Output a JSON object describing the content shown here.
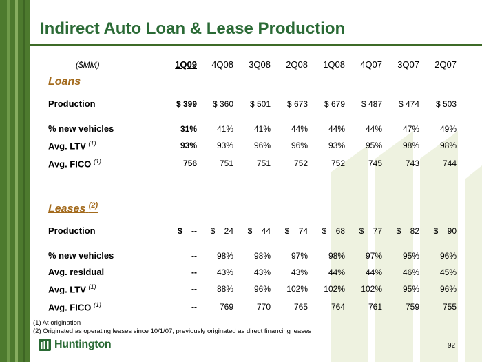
{
  "title": "Indirect Auto Loan & Lease Production",
  "units_label": "($MM)",
  "columns": [
    "1Q09",
    "4Q08",
    "3Q08",
    "2Q08",
    "1Q08",
    "4Q07",
    "3Q07",
    "2Q07"
  ],
  "loans": {
    "heading": "Loans",
    "rows": [
      {
        "label": "Production",
        "sup": "",
        "values": [
          "$ 399",
          "$ 360",
          "$ 501",
          "$ 673",
          "$ 679",
          "$ 487",
          "$ 474",
          "$ 503"
        ]
      },
      {
        "label": "% new vehicles",
        "sup": "",
        "values": [
          "31%",
          "41%",
          "41%",
          "44%",
          "44%",
          "44%",
          "47%",
          "49%"
        ]
      },
      {
        "label": "Avg. LTV",
        "sup": "(1)",
        "values": [
          "93%",
          "93%",
          "96%",
          "96%",
          "93%",
          "95%",
          "98%",
          "98%"
        ]
      },
      {
        "label": "Avg. FICO",
        "sup": "(1)",
        "values": [
          "756",
          "751",
          "751",
          "752",
          "752",
          "745",
          "743",
          "744"
        ]
      }
    ]
  },
  "leases": {
    "heading": "Leases",
    "heading_sup": "(2)",
    "rows": [
      {
        "label": "Production",
        "sup": "",
        "values": [
          "$    --",
          "$    24",
          "$    44",
          "$    74",
          "$    68",
          "$    77",
          "$    82",
          "$    90"
        ]
      },
      {
        "label": "% new vehicles",
        "sup": "",
        "values": [
          "--",
          "98%",
          "98%",
          "97%",
          "98%",
          "97%",
          "95%",
          "96%"
        ]
      },
      {
        "label": "Avg. residual",
        "sup": "",
        "values": [
          "--",
          "43%",
          "43%",
          "43%",
          "44%",
          "44%",
          "46%",
          "45%"
        ]
      },
      {
        "label": "Avg. LTV",
        "sup": "(1)",
        "values": [
          "--",
          "88%",
          "96%",
          "102%",
          "102%",
          "102%",
          "95%",
          "96%"
        ]
      },
      {
        "label": "Avg. FICO",
        "sup": "(1)",
        "values": [
          "--",
          "769",
          "770",
          "765",
          "764",
          "761",
          "759",
          "755"
        ]
      }
    ]
  },
  "footnotes": [
    "(1)  At origination",
    "(2)  Originated as operating leases since 10/1/07; previously originated as direct financing leases"
  ],
  "logo": {
    "text": "Huntington",
    "icon": "huntington-logo-icon"
  },
  "page_number": "92",
  "colors": {
    "title": "#2a6a35",
    "section": "#a36a1c",
    "sidebar": "#4d7a2e",
    "watermark": "#eef2e0"
  }
}
